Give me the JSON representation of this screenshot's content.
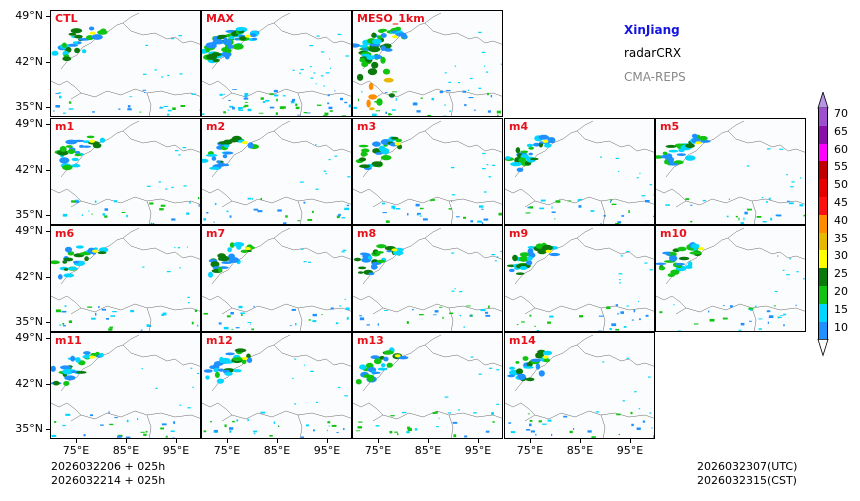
{
  "title": "XinJiang",
  "product": "radarCRX",
  "model": "CMA-REPS",
  "panels": [
    "CTL",
    "MAX",
    "MESO_1km",
    "m1",
    "m2",
    "m3",
    "m4",
    "m5",
    "m6",
    "m7",
    "m8",
    "m9",
    "m10",
    "m11",
    "m12",
    "m13",
    "m14"
  ],
  "y_ticks": [
    "49°N",
    "42°N",
    "35°N"
  ],
  "x_ticks": [
    "75°E",
    "85°E",
    "95°E"
  ],
  "init_utc": "2026032206  +  025h",
  "init_cst": "2026032214  +  025h",
  "valid_utc": "2026032307(UTC)",
  "valid_cst": "2026032315(CST)",
  "colorbar": {
    "labels": [
      "70",
      "65",
      "60",
      "55",
      "50",
      "45",
      "40",
      "35",
      "30",
      "25",
      "20",
      "15",
      "10"
    ],
    "colors": [
      "#9d4fd0",
      "#8a0fa8",
      "#ff00ff",
      "#c00000",
      "#e60000",
      "#ff1010",
      "#ff8c00",
      "#e6b800",
      "#ffff00",
      "#0a7a0a",
      "#12c412",
      "#00d6ff",
      "#1e90ff"
    ],
    "over_color": "#b894e6"
  },
  "title_color": "#1515e0",
  "label_color": "#e8101a"
}
